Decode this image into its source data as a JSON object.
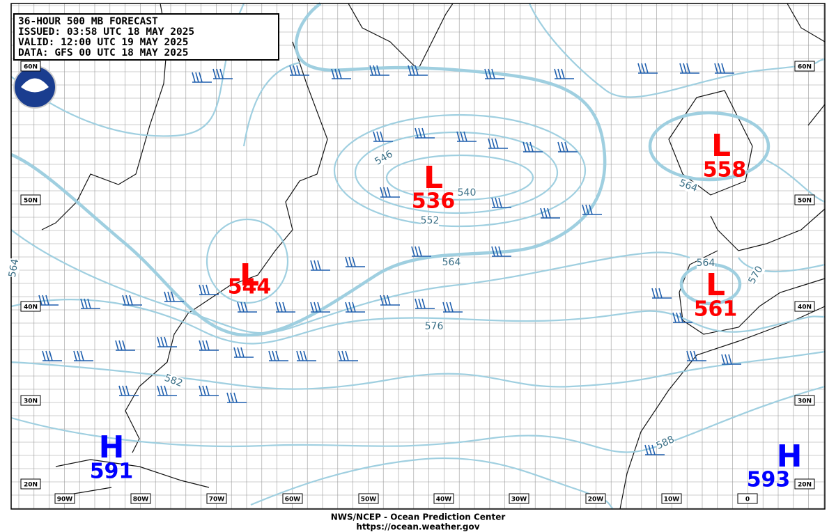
{
  "header": {
    "lines": [
      "36-HOUR 500 MB FORECAST",
      "ISSUED: 03:58 UTC 18 MAY 2025",
      "VALID:  12:00 UTC 19 MAY 2025",
      "DATA:  GFS 00 UTC 18 MAY 2025"
    ]
  },
  "centers": [
    {
      "type": "L",
      "value": "544"
    },
    {
      "type": "L",
      "value": "536"
    },
    {
      "type": "L",
      "value": "558"
    },
    {
      "type": "L",
      "value": "561"
    },
    {
      "type": "H",
      "value": "591"
    },
    {
      "type": "H",
      "value": "593"
    }
  ],
  "contour_labels": [
    "546",
    "540",
    "552",
    "564",
    "576",
    "582",
    "588",
    "564",
    "564",
    "570",
    "564"
  ],
  "lat_labels": [
    "60N",
    "50N",
    "40N",
    "30N",
    "20N"
  ],
  "lon_labels": [
    "90W",
    "80W",
    "70W",
    "60W",
    "50W",
    "40W",
    "30W",
    "20W",
    "10W",
    "0"
  ],
  "footer": [
    "NWS/NCEP - Ocean Prediction Center",
    "https://ocean.weather.gov"
  ]
}
